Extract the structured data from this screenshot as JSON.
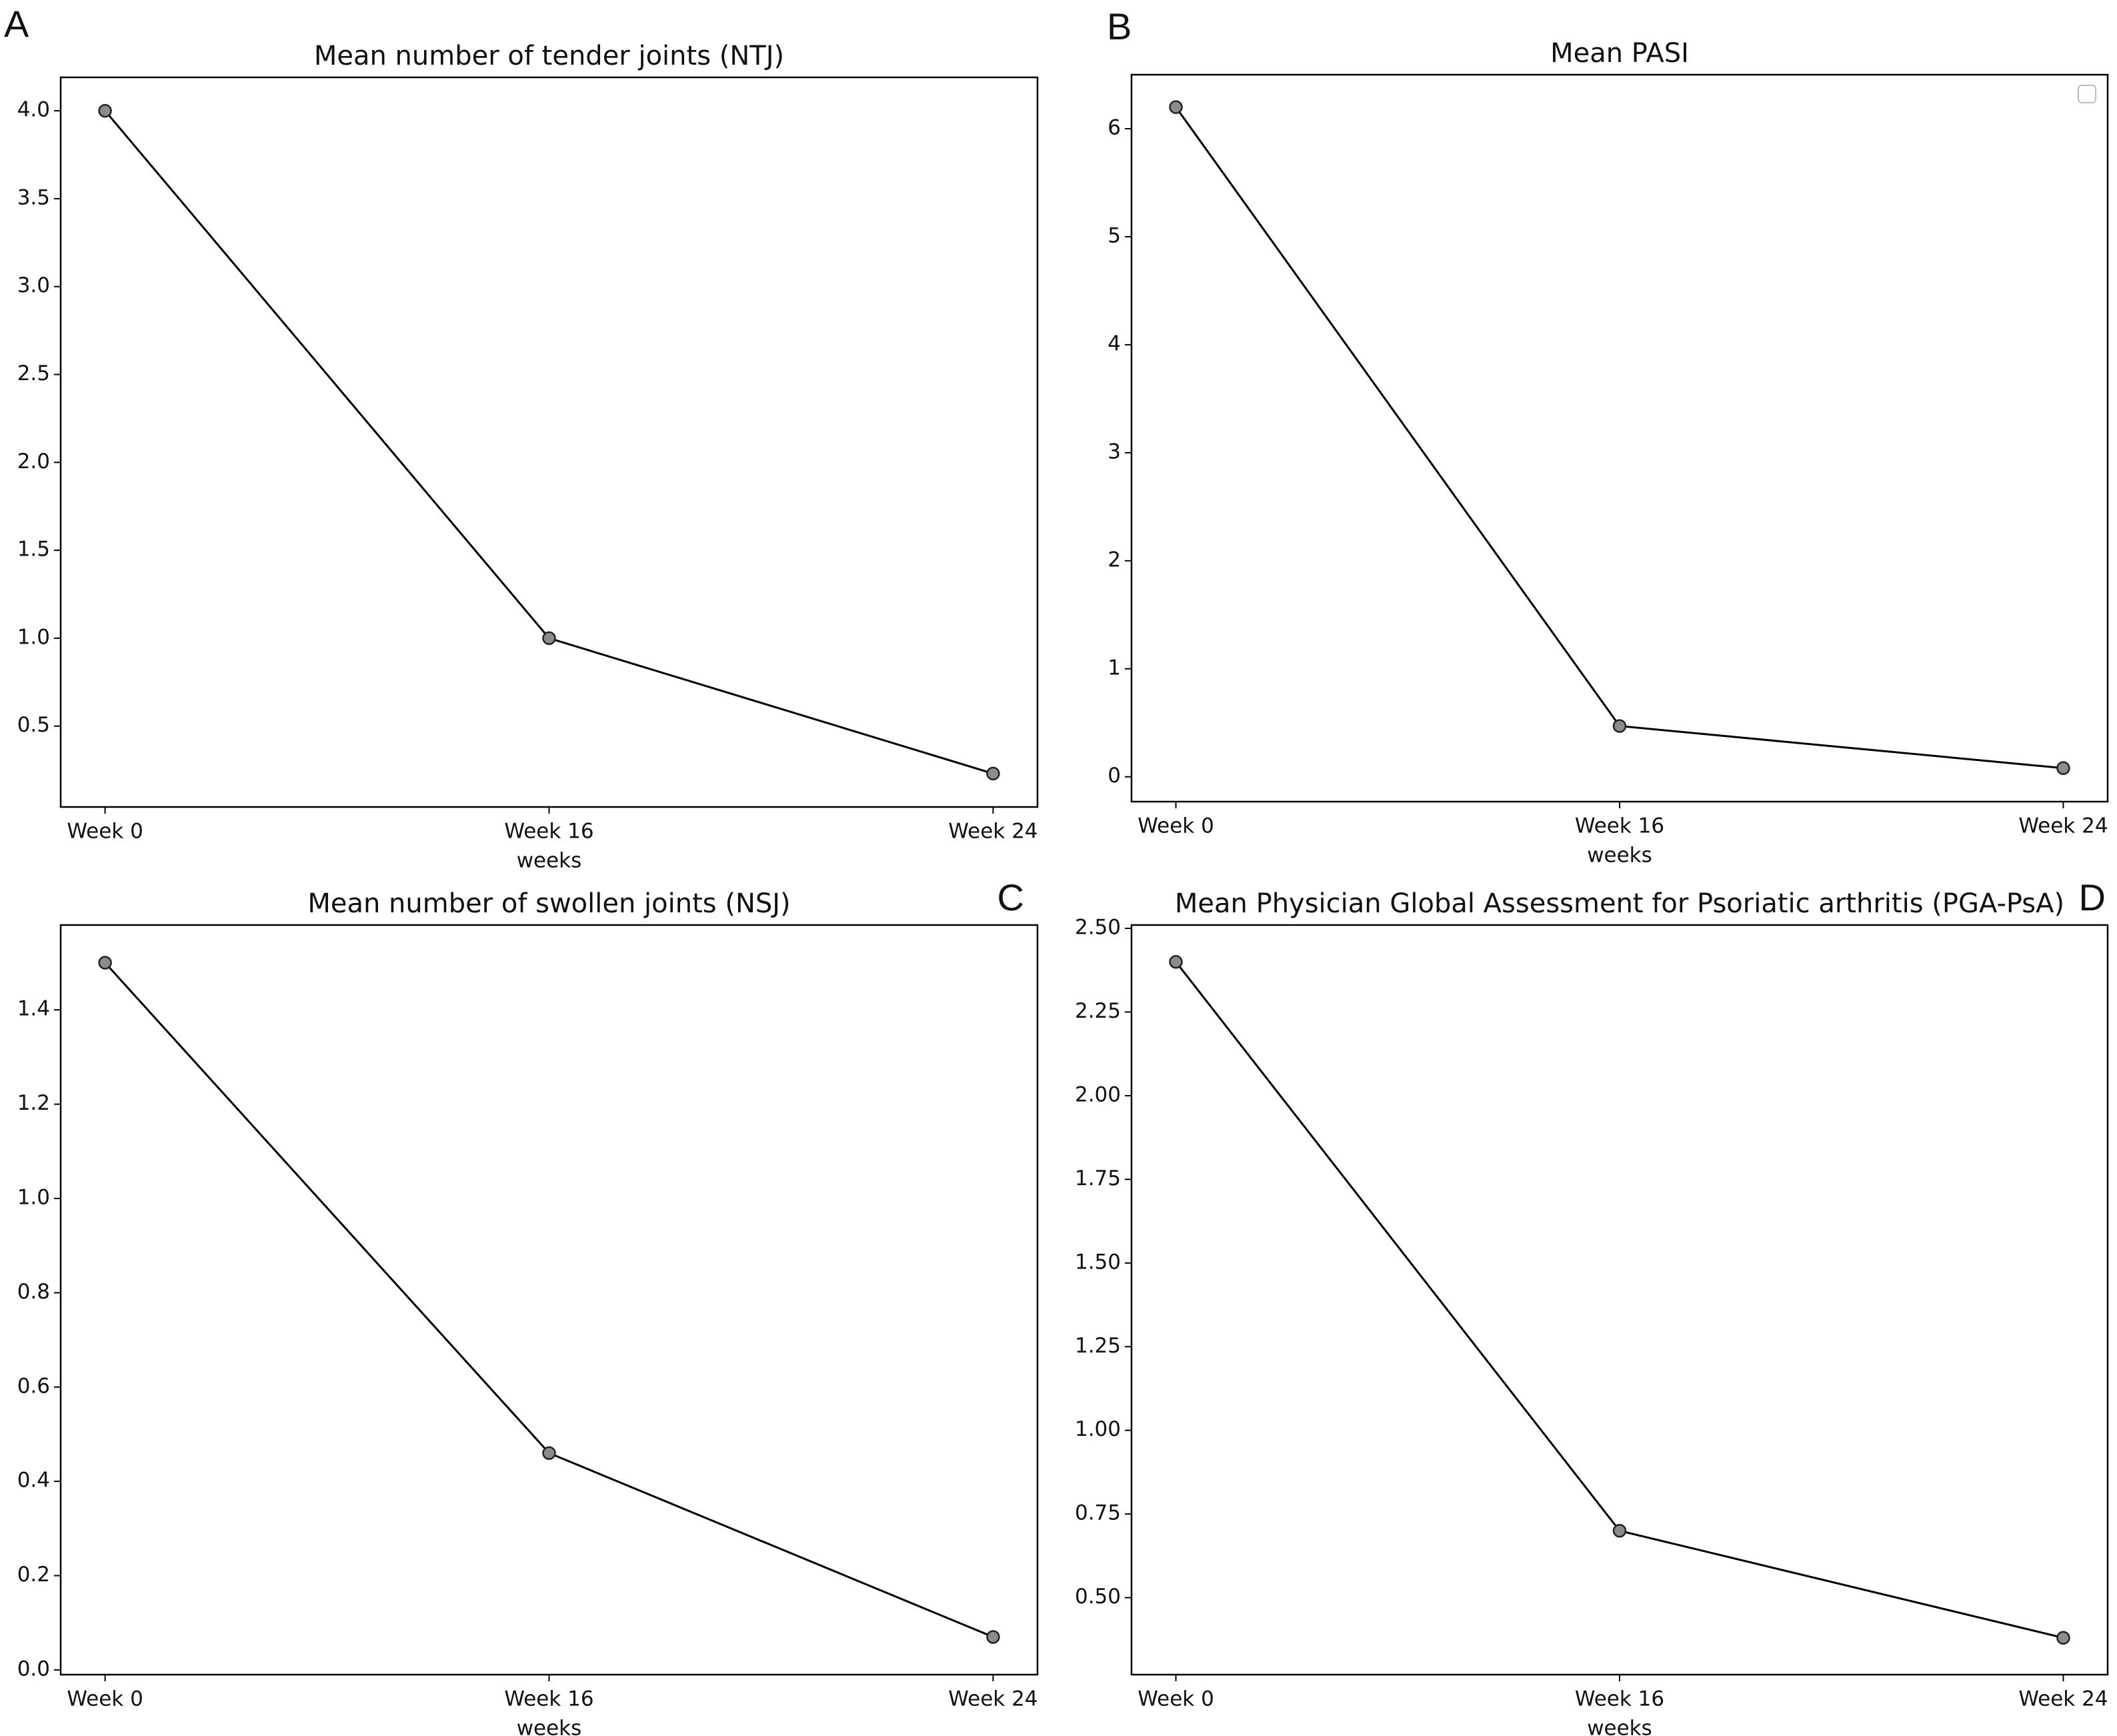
{
  "chart_data": [
    {
      "type": "line",
      "panel": "A",
      "title": "Mean number of tender joints (NTJ)",
      "xlabel": "weeks",
      "categories": [
        "Week 0",
        "Week 16",
        "Week 24"
      ],
      "values": [
        4.0,
        1.0,
        0.23
      ],
      "line_color": "#000000",
      "marker_color": "#8c8c8c",
      "ylim": [
        0.04,
        4.19
      ],
      "yticks": [
        0.5,
        {
          "value": 1,
          "label": "1.0"
        },
        1.5,
        {
          "value": 2,
          "label": "2.0"
        },
        2.5,
        {
          "value": 3,
          "label": "3.0"
        },
        3.5,
        {
          "value": 4,
          "label": "4.0"
        }
      ]
    },
    {
      "type": "line",
      "panel": "B",
      "title": "Mean PASI",
      "xlabel": "weeks",
      "categories": [
        "Week 0",
        "Week 16",
        "Week 24"
      ],
      "values": [
        6.2,
        0.47,
        0.08
      ],
      "line_color": "#000000",
      "marker_color": "#8c8c8c",
      "legend": "upper right",
      "ylim": [
        -0.23,
        6.5
      ],
      "yticks": [
        0,
        1,
        2,
        3,
        4,
        5,
        6
      ]
    },
    {
      "type": "line",
      "panel": "C",
      "title": "Mean number of swollen joints (NSJ)",
      "xlabel": "weeks",
      "categories": [
        "Week 0",
        "Week 16",
        "Week 24"
      ],
      "values": [
        1.5,
        0.46,
        0.07
      ],
      "line_color": "#000000",
      "marker_color": "#8c8c8c",
      "ylim": [
        -0.01,
        1.58
      ],
      "yticks": [
        {
          "value": 0,
          "label": "0.0"
        },
        0.2,
        0.4,
        0.6,
        0.8,
        {
          "value": 1,
          "label": "1.0"
        },
        1.2,
        1.4
      ]
    },
    {
      "type": "line",
      "panel": "D",
      "title": "Mean Physician Global Assessment for Psoriatic arthritis (PGA-PsA)",
      "xlabel": "weeks",
      "categories": [
        "Week 0",
        "Week 16",
        "Week 24"
      ],
      "values": [
        2.4,
        0.7,
        0.38
      ],
      "line_color": "#000000",
      "marker_color": "#8c8c8c",
      "ylim": [
        0.27,
        2.51
      ],
      "yticks": [
        {
          "value": 0.5,
          "label": "0.50"
        },
        0.75,
        {
          "value": 1,
          "label": "1.00"
        },
        1.25,
        {
          "value": 1.5,
          "label": "1.50"
        },
        1.75,
        {
          "value": 2,
          "label": "2.00"
        },
        2.25,
        {
          "value": 2.5,
          "label": "2.50"
        }
      ]
    }
  ]
}
